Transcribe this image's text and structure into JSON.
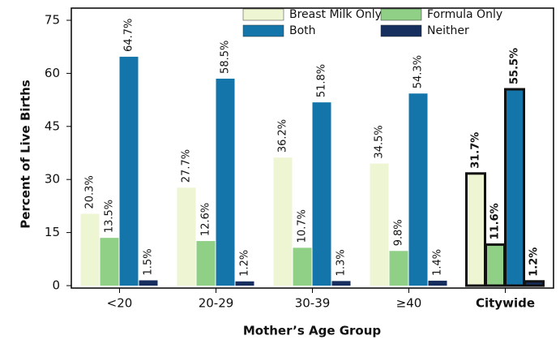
{
  "chart_data": {
    "type": "bar",
    "x_label": "Mother’s Age Group",
    "y_label": "Percent of Live Births",
    "categories": [
      "<20",
      "20-29",
      "30-39",
      "≥40",
      "Citywide"
    ],
    "series": [
      {
        "name": "Breast Milk Only",
        "color": "#eef5d3",
        "values": [
          20.3,
          27.7,
          36.2,
          34.5,
          31.7
        ],
        "value_labels": [
          "20.3%",
          "27.7%",
          "36.2%",
          "34.5%",
          "31.7%"
        ]
      },
      {
        "name": "Formula Only",
        "color": "#8fcf86",
        "values": [
          13.5,
          12.6,
          10.7,
          9.8,
          11.6
        ],
        "value_labels": [
          "13.5%",
          "12.6%",
          "10.7%",
          "9.8%",
          "11.6%"
        ]
      },
      {
        "name": "Both",
        "color": "#1475aa",
        "values": [
          64.7,
          58.5,
          51.8,
          54.3,
          55.5
        ],
        "value_labels": [
          "64.7%",
          "58.5%",
          "51.8%",
          "54.3%",
          "55.5%"
        ]
      },
      {
        "name": "Neither",
        "color": "#172f5e",
        "values": [
          1.5,
          1.2,
          1.3,
          1.4,
          1.2
        ],
        "value_labels": [
          "1.5%",
          "1.2%",
          "1.3%",
          "1.4%",
          "1.2%"
        ]
      }
    ],
    "highlight": 4,
    "ylim": [
      0,
      75
    ],
    "yticks": [
      0,
      15,
      30,
      45,
      60,
      75
    ],
    "legend": "top"
  }
}
